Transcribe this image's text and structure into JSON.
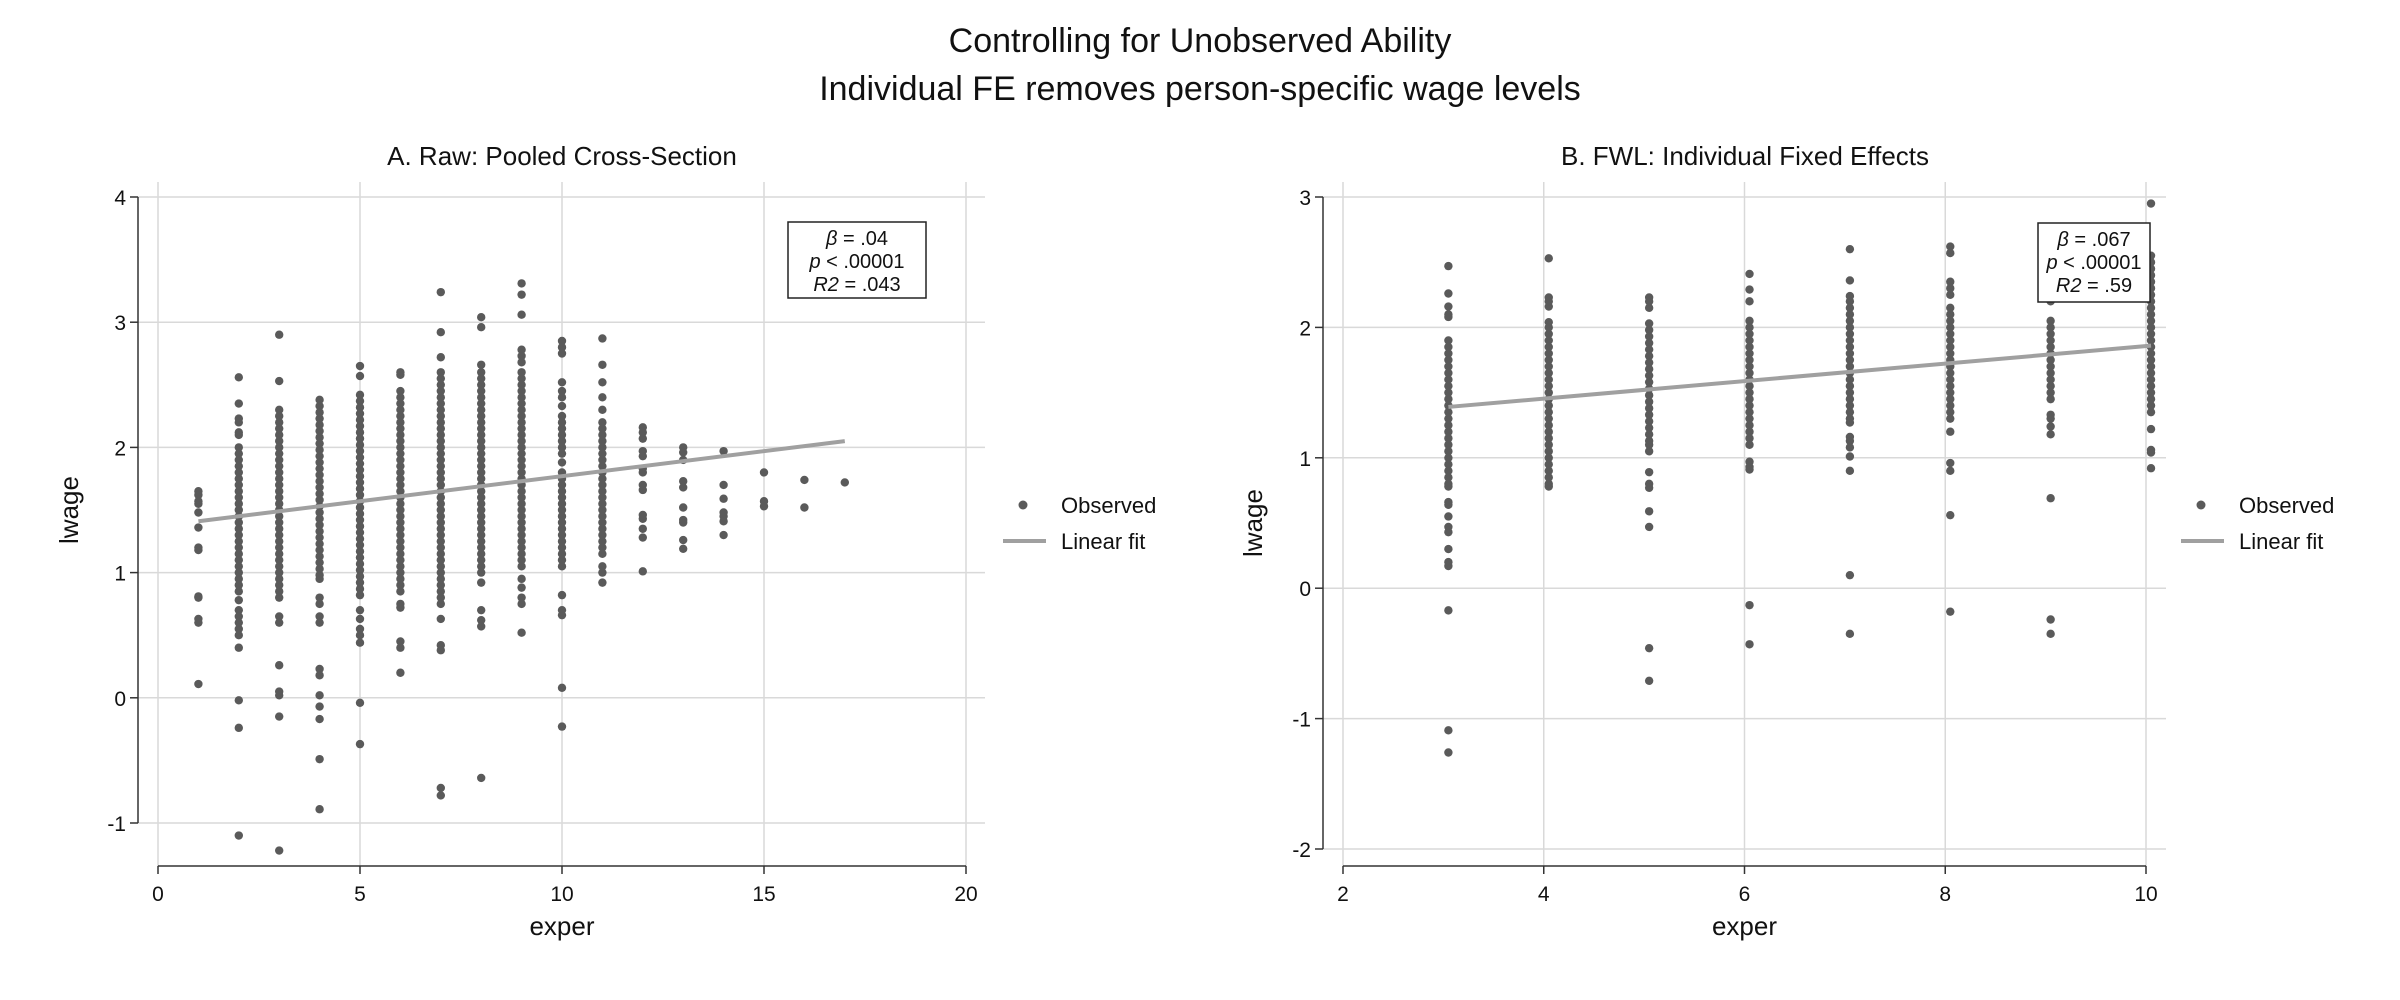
{
  "title": "Controlling for Unobserved Ability",
  "subtitle": "Individual FE removes person-specific wage levels",
  "colors": {
    "points": "#5a5a5a",
    "fit_line": "#a0a0a0",
    "grid": "#d9d9d9",
    "axis": "#333333"
  },
  "chart_data": [
    {
      "type": "scatter",
      "title": "A. Raw: Pooled Cross-Section",
      "xlabel": "exper",
      "ylabel": "lwage",
      "xlim": [
        0,
        20
      ],
      "ylim": [
        -1,
        4
      ],
      "xticks": [
        "0",
        "5",
        "10",
        "15",
        "20"
      ],
      "yticks": [
        "-1",
        "0",
        "1",
        "2",
        "3",
        "4"
      ],
      "grid": true,
      "legend": {
        "position": "right",
        "entries": [
          "Observed",
          "Linear fit"
        ]
      },
      "annotation": [
        {
          "sym": "β",
          "rest": " = .04"
        },
        {
          "sym": "p",
          "rest": " < .00001"
        },
        {
          "sym": "R2",
          "rest": " = .043"
        }
      ],
      "fit": {
        "x": [
          1,
          17
        ],
        "y": [
          1.41,
          2.05
        ]
      },
      "columns": [
        {
          "x": 1,
          "y": [
            1.65,
            1.62,
            1.57,
            1.55,
            1.48,
            1.36,
            1.2,
            1.18,
            0.81,
            0.8,
            0.63,
            0.6,
            0.11
          ]
        },
        {
          "x": 2,
          "y": [
            2.56,
            2.35,
            2.23,
            2.2,
            2.12,
            2.1,
            2.0,
            1.95,
            1.9,
            1.85,
            1.8,
            1.75,
            1.7,
            1.65,
            1.6,
            1.55,
            1.5,
            1.45,
            1.4,
            1.35,
            1.3,
            1.25,
            1.2,
            1.15,
            1.1,
            1.05,
            1.0,
            0.95,
            0.9,
            0.85,
            0.78,
            0.7,
            0.65,
            0.6,
            0.55,
            0.5,
            0.4,
            -0.02,
            -0.24,
            -1.1
          ]
        },
        {
          "x": 3,
          "y": [
            2.9,
            2.53,
            2.3,
            2.25,
            2.2,
            2.15,
            2.1,
            2.05,
            2.0,
            1.95,
            1.9,
            1.85,
            1.8,
            1.75,
            1.7,
            1.65,
            1.6,
            1.55,
            1.5,
            1.45,
            1.4,
            1.35,
            1.3,
            1.25,
            1.2,
            1.15,
            1.1,
            1.05,
            1.0,
            0.95,
            0.9,
            0.85,
            0.8,
            0.65,
            0.6,
            0.26,
            0.05,
            0.02,
            -0.15,
            -1.22
          ]
        },
        {
          "x": 4,
          "y": [
            2.38,
            2.33,
            2.28,
            2.23,
            2.18,
            2.13,
            2.08,
            2.03,
            1.98,
            1.93,
            1.88,
            1.83,
            1.78,
            1.73,
            1.68,
            1.63,
            1.58,
            1.53,
            1.48,
            1.43,
            1.38,
            1.33,
            1.28,
            1.23,
            1.18,
            1.13,
            1.08,
            1.03,
            0.98,
            0.95,
            0.8,
            0.75,
            0.65,
            0.6,
            0.23,
            0.18,
            0.02,
            -0.07,
            -0.17,
            -0.49,
            -0.89
          ]
        },
        {
          "x": 5,
          "y": [
            2.65,
            2.57,
            2.42,
            2.37,
            2.32,
            2.27,
            2.22,
            2.17,
            2.12,
            2.07,
            2.02,
            1.97,
            1.92,
            1.87,
            1.82,
            1.77,
            1.72,
            1.67,
            1.62,
            1.57,
            1.52,
            1.47,
            1.42,
            1.37,
            1.32,
            1.27,
            1.22,
            1.17,
            1.12,
            1.07,
            1.02,
            0.97,
            0.92,
            0.87,
            0.82,
            0.7,
            0.63,
            0.55,
            0.5,
            0.44,
            -0.04,
            -0.37
          ]
        },
        {
          "x": 6,
          "y": [
            2.6,
            2.58,
            2.45,
            2.4,
            2.35,
            2.3,
            2.25,
            2.2,
            2.15,
            2.1,
            2.05,
            2.0,
            1.95,
            1.9,
            1.85,
            1.8,
            1.75,
            1.7,
            1.65,
            1.6,
            1.55,
            1.5,
            1.45,
            1.4,
            1.35,
            1.3,
            1.25,
            1.2,
            1.15,
            1.1,
            1.05,
            1.0,
            0.95,
            0.9,
            0.85,
            0.75,
            0.72,
            0.45,
            0.4,
            0.2
          ]
        },
        {
          "x": 7,
          "y": [
            3.24,
            2.92,
            2.72,
            2.6,
            2.55,
            2.5,
            2.45,
            2.4,
            2.35,
            2.3,
            2.25,
            2.2,
            2.15,
            2.1,
            2.05,
            2.0,
            1.95,
            1.9,
            1.85,
            1.8,
            1.75,
            1.7,
            1.65,
            1.6,
            1.55,
            1.5,
            1.45,
            1.4,
            1.35,
            1.3,
            1.25,
            1.2,
            1.15,
            1.1,
            1.05,
            1.0,
            0.95,
            0.9,
            0.85,
            0.8,
            0.75,
            0.63,
            0.42,
            0.38,
            -0.72,
            -0.78
          ]
        },
        {
          "x": 8,
          "y": [
            3.04,
            2.96,
            2.66,
            2.6,
            2.55,
            2.5,
            2.45,
            2.4,
            2.35,
            2.3,
            2.25,
            2.2,
            2.15,
            2.1,
            2.05,
            2.0,
            1.95,
            1.9,
            1.85,
            1.8,
            1.75,
            1.7,
            1.65,
            1.6,
            1.55,
            1.5,
            1.45,
            1.4,
            1.35,
            1.3,
            1.25,
            1.2,
            1.15,
            1.1,
            1.05,
            1.0,
            0.92,
            0.7,
            0.62,
            0.57,
            -0.64
          ]
        },
        {
          "x": 9,
          "y": [
            3.31,
            3.22,
            3.06,
            2.78,
            2.73,
            2.68,
            2.6,
            2.55,
            2.5,
            2.45,
            2.4,
            2.35,
            2.3,
            2.25,
            2.2,
            2.15,
            2.1,
            2.05,
            2.0,
            1.95,
            1.9,
            1.85,
            1.8,
            1.75,
            1.7,
            1.65,
            1.6,
            1.55,
            1.5,
            1.45,
            1.4,
            1.35,
            1.3,
            1.25,
            1.2,
            1.15,
            1.1,
            1.05,
            0.95,
            0.88,
            0.8,
            0.75,
            0.52
          ]
        },
        {
          "x": 10,
          "y": [
            2.85,
            2.8,
            2.75,
            2.52,
            2.45,
            2.4,
            2.33,
            2.25,
            2.2,
            2.15,
            2.1,
            2.05,
            2.0,
            1.95,
            1.88,
            1.8,
            1.75,
            1.7,
            1.65,
            1.6,
            1.55,
            1.5,
            1.45,
            1.4,
            1.35,
            1.3,
            1.25,
            1.2,
            1.15,
            1.1,
            1.05,
            0.82,
            0.7,
            0.66,
            0.08,
            -0.23
          ]
        },
        {
          "x": 11,
          "y": [
            2.87,
            2.66,
            2.52,
            2.4,
            2.3,
            2.2,
            2.15,
            2.1,
            2.05,
            2.0,
            1.95,
            1.9,
            1.85,
            1.8,
            1.75,
            1.7,
            1.65,
            1.6,
            1.55,
            1.5,
            1.45,
            1.4,
            1.35,
            1.3,
            1.25,
            1.2,
            1.15,
            1.05,
            1.0,
            0.92
          ]
        },
        {
          "x": 12,
          "y": [
            2.16,
            2.12,
            2.07,
            1.97,
            1.93,
            1.83,
            1.8,
            1.7,
            1.66,
            1.46,
            1.43,
            1.35,
            1.28,
            1.01
          ]
        },
        {
          "x": 13,
          "y": [
            2.0,
            1.96,
            1.9,
            1.73,
            1.68,
            1.52,
            1.42,
            1.4,
            1.26,
            1.19
          ]
        },
        {
          "x": 14,
          "y": [
            1.97,
            1.7,
            1.59,
            1.48,
            1.45,
            1.41,
            1.3
          ]
        },
        {
          "x": 15,
          "y": [
            1.8,
            1.57,
            1.53
          ]
        },
        {
          "x": 16,
          "y": [
            1.74,
            1.52
          ]
        },
        {
          "x": 17,
          "y": [
            1.72
          ]
        }
      ]
    },
    {
      "type": "scatter",
      "title": "B. FWL: Individual Fixed Effects",
      "xlabel": "exper",
      "ylabel": "lwage",
      "xlim": [
        2,
        10
      ],
      "ylim": [
        -2,
        3
      ],
      "xticks": [
        "2",
        "4",
        "6",
        "8",
        "10"
      ],
      "yticks": [
        "-2",
        "-1",
        "0",
        "1",
        "2",
        "3"
      ],
      "grid": true,
      "legend": {
        "position": "right",
        "entries": [
          "Observed",
          "Linear fit"
        ]
      },
      "annotation": [
        {
          "sym": "β",
          "rest": " = .067"
        },
        {
          "sym": "p",
          "rest": " < .00001"
        },
        {
          "sym": "R2",
          "rest": " = .59"
        }
      ],
      "fit": {
        "x": [
          3.05,
          10.05
        ],
        "y": [
          1.39,
          1.86
        ]
      },
      "columns": [
        {
          "x": 3.05,
          "y": [
            2.47,
            2.26,
            2.16,
            2.1,
            2.08,
            1.9,
            1.85,
            1.8,
            1.75,
            1.7,
            1.65,
            1.6,
            1.55,
            1.5,
            1.45,
            1.4,
            1.35,
            1.3,
            1.25,
            1.2,
            1.15,
            1.1,
            1.05,
            1.0,
            0.95,
            0.9,
            0.85,
            0.8,
            0.78,
            0.66,
            0.64,
            0.55,
            0.47,
            0.43,
            0.3,
            0.2,
            0.17,
            -0.17,
            -1.09,
            -1.26
          ]
        },
        {
          "x": 4.05,
          "y": [
            2.53,
            2.23,
            2.2,
            2.16,
            2.04,
            2.0,
            1.95,
            1.9,
            1.85,
            1.8,
            1.75,
            1.7,
            1.65,
            1.6,
            1.55,
            1.5,
            1.45,
            1.4,
            1.35,
            1.3,
            1.25,
            1.2,
            1.15,
            1.1,
            1.05,
            1.0,
            0.95,
            0.9,
            0.85,
            0.8,
            0.78
          ]
        },
        {
          "x": 5.05,
          "y": [
            2.23,
            2.2,
            2.15,
            2.03,
            1.98,
            1.93,
            1.88,
            1.83,
            1.78,
            1.73,
            1.68,
            1.63,
            1.58,
            1.53,
            1.48,
            1.43,
            1.38,
            1.33,
            1.28,
            1.23,
            1.18,
            1.13,
            1.1,
            1.05,
            0.89,
            0.8,
            0.77,
            0.59,
            0.47,
            -0.46,
            -0.71
          ]
        },
        {
          "x": 6.05,
          "y": [
            2.41,
            2.29,
            2.2,
            2.05,
            2.0,
            1.95,
            1.9,
            1.85,
            1.8,
            1.75,
            1.7,
            1.65,
            1.6,
            1.55,
            1.5,
            1.45,
            1.4,
            1.35,
            1.3,
            1.25,
            1.2,
            1.15,
            1.1,
            0.97,
            0.93,
            0.91,
            -0.13,
            -0.43
          ]
        },
        {
          "x": 7.05,
          "y": [
            2.6,
            2.36,
            2.24,
            2.2,
            2.15,
            2.1,
            2.05,
            2.0,
            1.95,
            1.9,
            1.85,
            1.8,
            1.75,
            1.7,
            1.65,
            1.6,
            1.55,
            1.5,
            1.45,
            1.4,
            1.35,
            1.3,
            1.27,
            1.16,
            1.13,
            1.08,
            1.01,
            0.9,
            0.1,
            -0.35
          ]
        },
        {
          "x": 8.05,
          "y": [
            2.62,
            2.57,
            2.35,
            2.3,
            2.25,
            2.15,
            2.1,
            2.05,
            2.0,
            1.95,
            1.9,
            1.85,
            1.8,
            1.75,
            1.7,
            1.65,
            1.6,
            1.55,
            1.5,
            1.45,
            1.4,
            1.35,
            1.3,
            1.2,
            0.96,
            0.9,
            0.56,
            -0.18
          ]
        },
        {
          "x": 9.05,
          "y": [
            2.2,
            2.05,
            2.0,
            1.95,
            1.9,
            1.85,
            1.8,
            1.75,
            1.7,
            1.65,
            1.6,
            1.55,
            1.5,
            1.45,
            1.33,
            1.3,
            1.24,
            1.18,
            0.69,
            -0.24,
            -0.35
          ]
        },
        {
          "x": 10.05,
          "y": [
            2.95,
            2.55,
            2.5,
            2.45,
            2.4,
            2.35,
            2.3,
            2.25,
            2.2,
            2.15,
            2.1,
            2.05,
            2.0,
            1.95,
            1.9,
            1.85,
            1.8,
            1.75,
            1.7,
            1.65,
            1.6,
            1.55,
            1.5,
            1.45,
            1.4,
            1.35,
            1.22,
            1.06,
            1.04,
            0.92
          ]
        }
      ]
    }
  ]
}
